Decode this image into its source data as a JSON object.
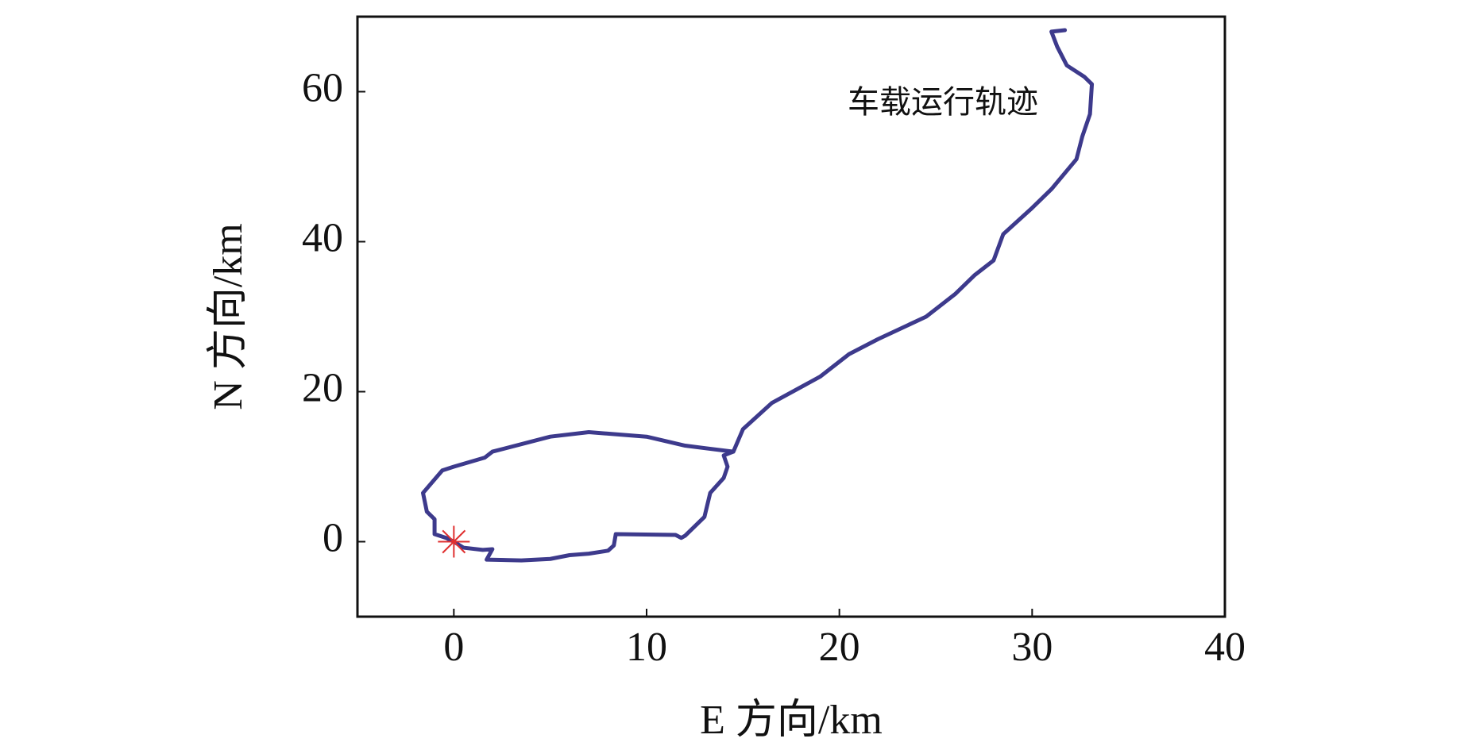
{
  "chart_data": {
    "type": "line",
    "xlabel": "E 方向/km",
    "ylabel": "N 方向/km",
    "annotation": "车载运行轨迹",
    "xlim": [
      -5,
      40
    ],
    "xticks": [
      0,
      10,
      20,
      30,
      40
    ],
    "ylim": [
      -10,
      70
    ],
    "yticks": [
      0,
      20,
      40,
      60
    ],
    "series": [
      {
        "color": "#3d3a8c",
        "x": [
          31.7,
          31.0,
          31.3,
          31.8,
          32.7,
          33.1,
          33.0,
          32.6,
          32.3,
          31.0,
          30.0,
          28.5,
          28.0,
          27.0,
          26.0,
          24.5,
          22.0,
          20.5,
          19.0,
          16.5,
          15.0,
          14.5,
          12.0,
          10.0,
          7.0,
          5.0,
          2.0,
          1.6,
          0.0,
          -0.6,
          -1.6,
          -1.4,
          -1.0,
          -1.0,
          -0.4,
          0.0,
          0.5,
          1.5,
          2.0,
          1.7,
          3.5,
          5.0,
          6.0,
          7.0,
          8.0,
          8.3,
          8.4,
          11.5,
          11.8,
          12.0,
          13.0,
          13.3,
          14.0,
          14.2,
          14.0,
          14.5
        ],
        "values": [
          68.2,
          68.0,
          66.0,
          63.5,
          62.0,
          61.0,
          57.0,
          54.0,
          51.0,
          47.0,
          44.5,
          41.0,
          37.5,
          35.5,
          33.0,
          30.0,
          27.0,
          25.0,
          22.0,
          18.5,
          15.0,
          12.0,
          12.8,
          14.0,
          14.6,
          14.0,
          12.0,
          11.2,
          10.0,
          9.5,
          6.5,
          4.0,
          3.0,
          1.0,
          0.5,
          0.0,
          -0.8,
          -1.1,
          -1.0,
          -2.4,
          -2.5,
          -2.3,
          -1.8,
          -1.6,
          -1.2,
          -0.5,
          1.0,
          0.9,
          0.5,
          0.8,
          3.3,
          6.5,
          8.5,
          10.0,
          11.5,
          12.0
        ]
      }
    ],
    "markers": [
      {
        "x": 0,
        "y": 0,
        "color": "#e03030"
      }
    ]
  }
}
